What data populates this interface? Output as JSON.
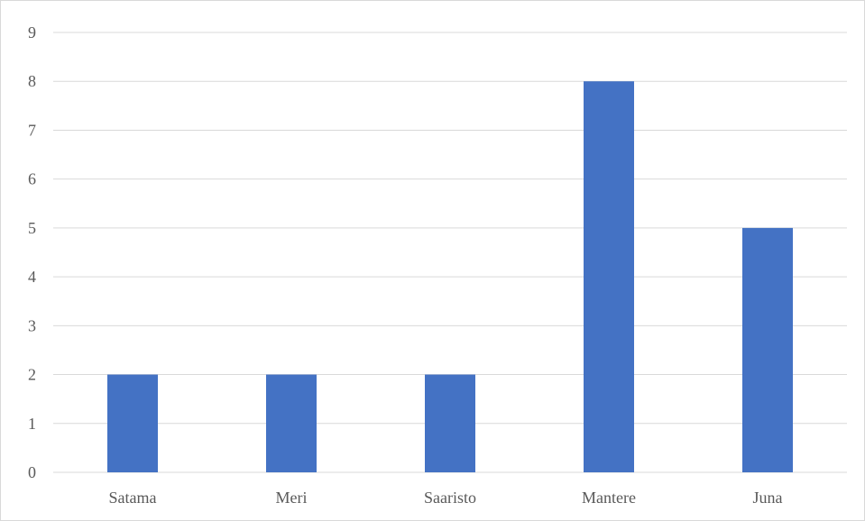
{
  "colors": {
    "bar": "#4472C4",
    "gridline": "#d9d9d9",
    "axis_text": "#595959"
  },
  "chart_data": {
    "type": "bar",
    "title": "",
    "xlabel": "",
    "ylabel": "",
    "categories": [
      "Satama",
      "Meri",
      "Saaristo",
      "Mantere",
      "Juna"
    ],
    "values": [
      2,
      2,
      2,
      8,
      5
    ],
    "ylim": [
      0,
      9
    ],
    "yticks": [
      "0",
      "1",
      "2",
      "3",
      "4",
      "5",
      "6",
      "7",
      "8",
      "9"
    ],
    "grid": true,
    "legend": "none"
  }
}
